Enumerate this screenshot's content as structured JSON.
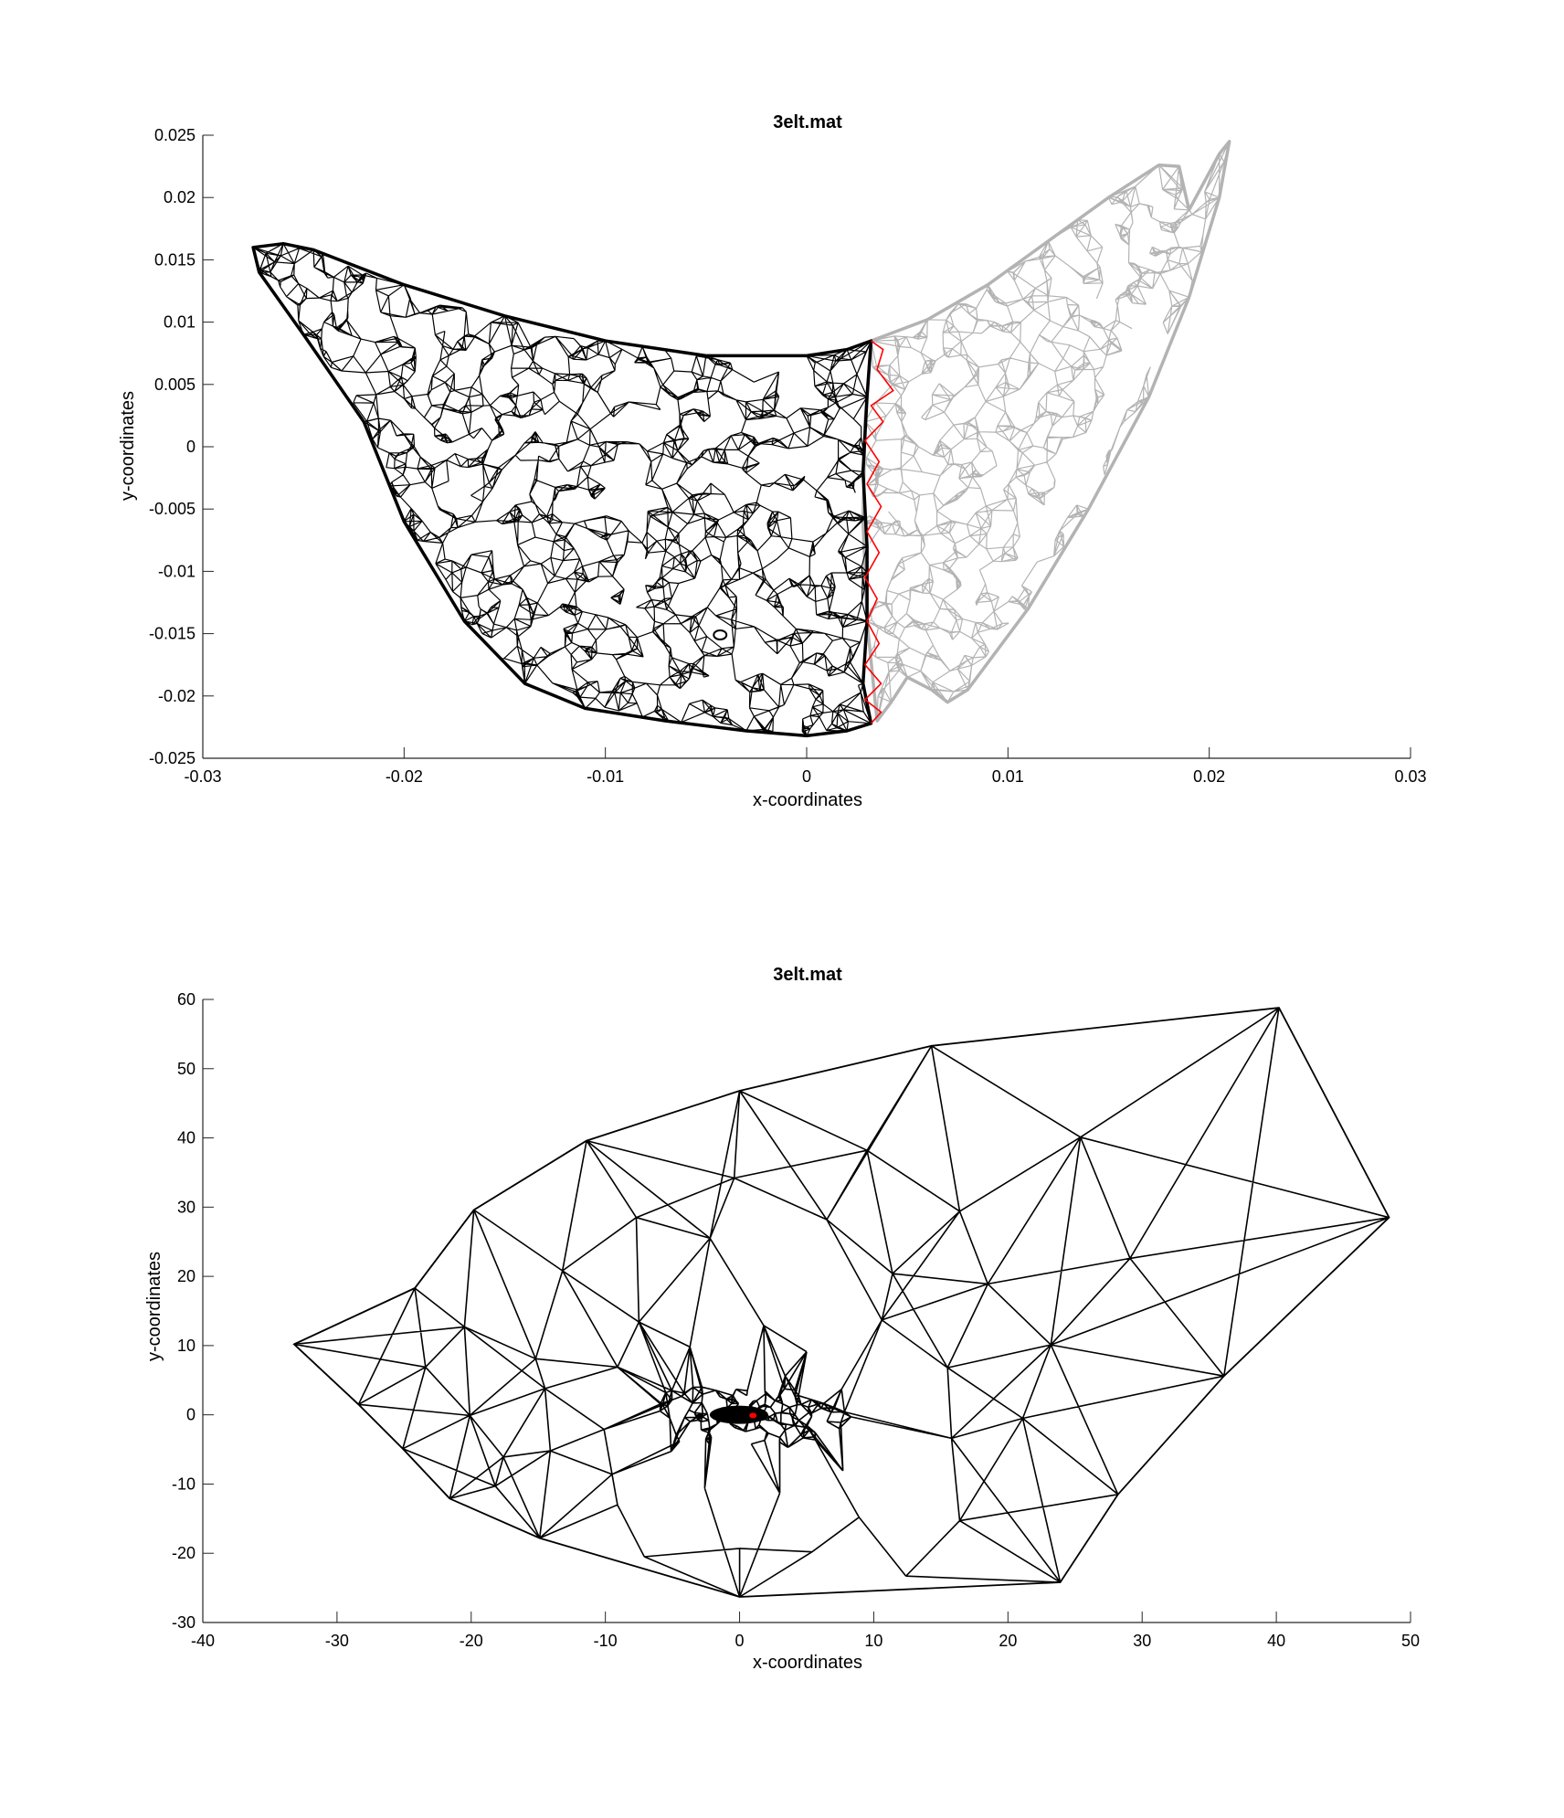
{
  "chart_data": [
    {
      "type": "scatter",
      "title": "3elt.mat",
      "xlabel": "x-coordinates",
      "ylabel": "y-coordinates",
      "xlim": [
        -0.03,
        0.03
      ],
      "ylim": [
        -0.025,
        0.025
      ],
      "xticks": [
        -0.03,
        -0.02,
        -0.01,
        0,
        0.01,
        0.02,
        0.03
      ],
      "xtick_labels": [
        "-0.03",
        "-0.02",
        "-0.01",
        "0",
        "0.01",
        "0.02",
        "0.03"
      ],
      "yticks": [
        -0.025,
        -0.02,
        -0.015,
        -0.01,
        -0.005,
        0,
        0.005,
        0.01,
        0.015,
        0.02,
        0.025
      ],
      "ytick_labels": [
        "-0.025",
        "-0.02",
        "-0.015",
        "-0.01",
        "-0.005",
        "0",
        "0.005",
        "0.01",
        "0.015",
        "0.02",
        "0.025"
      ],
      "grid": false,
      "colors": {
        "partition_a": "#000000",
        "partition_b": "#b3b3b3",
        "cut_edges": "#ff0000"
      },
      "series": [
        {
          "role": "partition_a",
          "color": "#000000",
          "outline": [
            [
              -0.0275,
              0.016
            ],
            [
              -0.026,
              0.0163
            ],
            [
              -0.0245,
              0.0158
            ],
            [
              -0.02,
              0.013
            ],
            [
              -0.015,
              0.0105
            ],
            [
              -0.01,
              0.0085
            ],
            [
              -0.005,
              0.0073
            ],
            [
              0,
              0.0073
            ],
            [
              0.002,
              0.0078
            ],
            [
              0.0032,
              0.0085
            ],
            [
              0.003,
              0.004
            ],
            [
              0.0028,
              -0.002
            ],
            [
              0.003,
              -0.008
            ],
            [
              0.003,
              -0.014
            ],
            [
              0.0028,
              -0.019
            ],
            [
              0.0032,
              -0.0222
            ],
            [
              0.002,
              -0.0228
            ],
            [
              0,
              -0.0232
            ],
            [
              -0.003,
              -0.0228
            ],
            [
              -0.007,
              -0.022
            ],
            [
              -0.011,
              -0.021
            ],
            [
              -0.014,
              -0.019
            ],
            [
              -0.017,
              -0.014
            ],
            [
              -0.02,
              -0.006
            ],
            [
              -0.022,
              0.002
            ],
            [
              -0.025,
              0.009
            ],
            [
              -0.0272,
              0.014
            ]
          ],
          "hole": [
            -0.0043,
            -0.0151
          ]
        },
        {
          "role": "partition_b",
          "color": "#b3b3b3",
          "outline": [
            [
              0.0032,
              0.0085
            ],
            [
              0.006,
              0.0102
            ],
            [
              0.009,
              0.013
            ],
            [
              0.012,
              0.0165
            ],
            [
              0.015,
              0.02
            ],
            [
              0.0175,
              0.0226
            ],
            [
              0.0185,
              0.0225
            ],
            [
              0.019,
              0.019
            ],
            [
              0.0205,
              0.0235
            ],
            [
              0.021,
              0.0245
            ],
            [
              0.0205,
              0.02
            ],
            [
              0.019,
              0.012
            ],
            [
              0.017,
              0.004
            ],
            [
              0.014,
              -0.005
            ],
            [
              0.011,
              -0.013
            ],
            [
              0.008,
              -0.0195
            ],
            [
              0.007,
              -0.0205
            ],
            [
              0.0062,
              -0.0195
            ],
            [
              0.005,
              -0.0185
            ],
            [
              0.0042,
              -0.0205
            ],
            [
              0.0035,
              -0.022
            ],
            [
              0.003,
              -0.014
            ],
            [
              0.0028,
              -0.006
            ],
            [
              0.0029,
              0.002
            ]
          ],
          "inner_hole": [
            [
              0.0095,
              -0.013
            ],
            [
              0.012,
              -0.008
            ],
            [
              0.015,
              0.0
            ],
            [
              0.0175,
              0.009
            ],
            [
              0.0178,
              0.0135
            ],
            [
              0.0168,
              0.011
            ],
            [
              0.0145,
              0.003
            ],
            [
              0.0115,
              -0.006
            ],
            [
              0.0098,
              -0.011
            ]
          ]
        },
        {
          "role": "cut_edges",
          "color": "#ff0000",
          "points": [
            [
              0.0032,
              0.0085
            ],
            [
              0.0038,
              0.0078
            ],
            [
              0.0035,
              0.0062
            ],
            [
              0.0043,
              0.0045
            ],
            [
              0.0032,
              0.0033
            ],
            [
              0.0038,
              0.002
            ],
            [
              0.0029,
              0.0005
            ],
            [
              0.0036,
              -0.0012
            ],
            [
              0.003,
              -0.003
            ],
            [
              0.0037,
              -0.0048
            ],
            [
              0.003,
              -0.0068
            ],
            [
              0.0036,
              -0.0085
            ],
            [
              0.0029,
              -0.0105
            ],
            [
              0.0035,
              -0.0122
            ],
            [
              0.003,
              -0.014
            ],
            [
              0.0036,
              -0.0158
            ],
            [
              0.0029,
              -0.0175
            ],
            [
              0.0037,
              -0.019
            ],
            [
              0.0029,
              -0.0203
            ],
            [
              0.0037,
              -0.0213
            ],
            [
              0.0032,
              -0.0222
            ]
          ]
        }
      ]
    },
    {
      "type": "scatter",
      "title": "3elt.mat",
      "xlabel": "x-coordinates",
      "ylabel": "y-coordinates",
      "xlim": [
        -40,
        50
      ],
      "ylim": [
        -30,
        60
      ],
      "xticks": [
        -40,
        -30,
        -20,
        -10,
        0,
        10,
        20,
        30,
        40,
        50
      ],
      "xtick_labels": [
        "-40",
        "-30",
        "-20",
        "-10",
        "0",
        "10",
        "20",
        "30",
        "40",
        "50"
      ],
      "yticks": [
        -30,
        -20,
        -10,
        0,
        10,
        20,
        30,
        40,
        50,
        60
      ],
      "ytick_labels": [
        "-30",
        "-20",
        "-10",
        "0",
        "10",
        "20",
        "30",
        "40",
        "50",
        "60"
      ],
      "grid": false,
      "colors": {
        "mesh": "#000000",
        "cut_edges": "#ff0000"
      },
      "series": [
        {
          "role": "hull",
          "color": "#000000",
          "points": [
            [
              -33.2,
              10.2
            ],
            [
              -24.2,
              18.3
            ],
            [
              -19.8,
              29.6
            ],
            [
              -11.4,
              39.6
            ],
            [
              0,
              46.8
            ],
            [
              14.3,
              53.3
            ],
            [
              40.2,
              58.8
            ],
            [
              48.4,
              28.5
            ],
            [
              36.1,
              5.6
            ],
            [
              28.2,
              -11.5
            ],
            [
              23.9,
              -24.2
            ],
            [
              0,
              -26.3
            ],
            [
              -14.9,
              -17.8
            ],
            [
              -21.6,
              -12.1
            ],
            [
              -25.1,
              -4.9
            ],
            [
              -28.4,
              1.5
            ]
          ]
        },
        {
          "role": "inner_nodes",
          "color": "#000000",
          "points": [
            [
              -7.7,
              28.5
            ],
            [
              -0.4,
              34.2
            ],
            [
              9.5,
              38.2
            ],
            [
              25.4,
              40.1
            ],
            [
              -20.5,
              12.7
            ],
            [
              -13.2,
              20.8
            ],
            [
              -2.2,
              25.5
            ],
            [
              6.5,
              28.2
            ],
            [
              16.4,
              29.4
            ],
            [
              29.1,
              22.6
            ],
            [
              -23.4,
              6.9
            ],
            [
              -15.2,
              8.1
            ],
            [
              -7.5,
              13.4
            ],
            [
              1.8,
              12.9
            ],
            [
              11.4,
              20.4
            ],
            [
              18.5,
              18.9
            ],
            [
              -20.1,
              -0.1
            ],
            [
              -17.6,
              -6.1
            ],
            [
              -14.5,
              3.8
            ],
            [
              -9.1,
              6.9
            ],
            [
              -3.7,
              9.8
            ],
            [
              5,
              9.1
            ],
            [
              10.6,
              13.7
            ],
            [
              23.2,
              10.1
            ],
            [
              -10.1,
              -2.1
            ],
            [
              -5.5,
              3.2
            ],
            [
              3.4,
              5.6
            ],
            [
              7.6,
              3.7
            ],
            [
              15.5,
              6.8
            ],
            [
              21.1,
              -0.5
            ],
            [
              -18.2,
              -10.3
            ],
            [
              -14.1,
              -5.2
            ],
            [
              -9.5,
              -8.6
            ],
            [
              -5.1,
              -5.3
            ],
            [
              3.6,
              -4.7
            ],
            [
              7.7,
              -8.1
            ],
            [
              15.8,
              -3.4
            ],
            [
              -9.1,
              -13
            ],
            [
              -2.6,
              -10.6
            ],
            [
              3,
              -11.3
            ],
            [
              8.9,
              -14.8
            ],
            [
              16.4,
              -15.3
            ],
            [
              -7.1,
              -20.5
            ],
            [
              0,
              -19.3
            ],
            [
              5.4,
              -19.8
            ],
            [
              12.4,
              -23.3
            ]
          ]
        },
        {
          "role": "dense_core",
          "color": "#000000",
          "center": [
            0.5,
            0
          ],
          "spread": [
            4,
            2.5
          ]
        },
        {
          "role": "cut_edges",
          "color": "#ff0000",
          "points": [
            [
              1.0,
              -0.1
            ]
          ]
        }
      ]
    }
  ]
}
